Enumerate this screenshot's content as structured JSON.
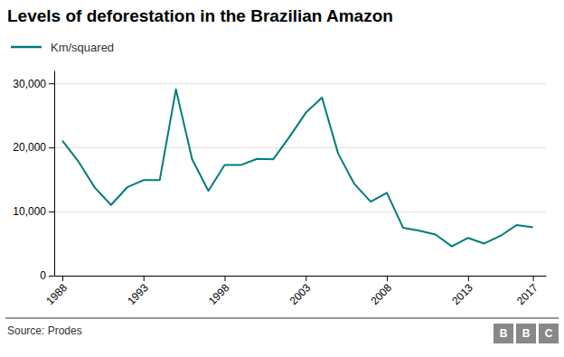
{
  "chart_data": {
    "type": "line",
    "title": "Levels of deforestation in the Brazilian Amazon",
    "source": "Source: Prodes",
    "annotations": [
      "B",
      "B",
      "C"
    ],
    "x": [
      1988,
      1989,
      1990,
      1991,
      1992,
      1993,
      1994,
      1995,
      1996,
      1997,
      1998,
      1999,
      2000,
      2001,
      2002,
      2003,
      2004,
      2005,
      2006,
      2007,
      2008,
      2009,
      2010,
      2011,
      2012,
      2013,
      2014,
      2015,
      2016,
      2017
    ],
    "series": [
      {
        "name": "Km/squared",
        "color": "#007b7b",
        "values": [
          21050,
          17770,
          13730,
          11030,
          13786,
          14896,
          14896,
          29059,
          18161,
          13227,
          17259,
          17259,
          18226,
          18165,
          21651,
          25396,
          27772,
          19014,
          14286,
          11532,
          12911,
          7464,
          7000,
          6418,
          4571,
          5891,
          5012,
          6207,
          7893,
          7536
        ]
      }
    ],
    "xlim": [
      1987.5,
      2017.8
    ],
    "xticks": [
      1988,
      1993,
      1998,
      2003,
      2008,
      2013,
      2017
    ],
    "ylim": [
      0,
      32000
    ],
    "yticks": [
      0,
      {
        "value": 10000,
        "label": "10,000"
      },
      {
        "value": 20000,
        "label": "20,000"
      },
      {
        "value": 30000,
        "label": "30,000"
      }
    ],
    "grid": true,
    "legend": "top-left"
  }
}
